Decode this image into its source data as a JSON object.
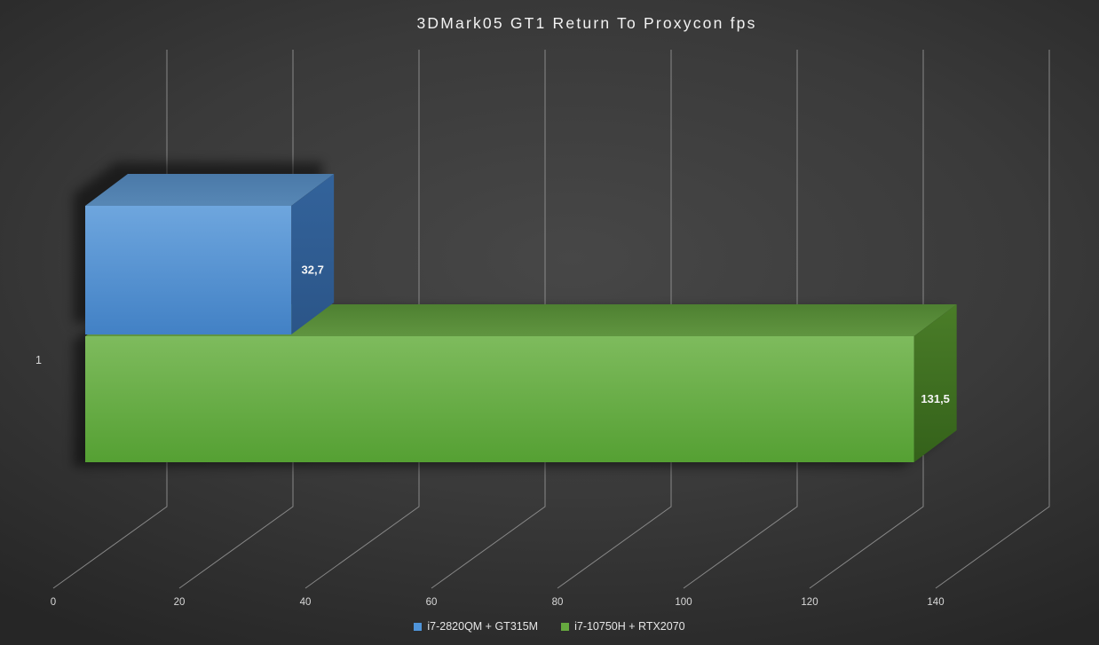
{
  "chart_data": {
    "type": "bar",
    "orientation": "horizontal",
    "style": "3d",
    "title": "3DMark05 GT1 Return To Proxycon fps",
    "categories": [
      "1"
    ],
    "series": [
      {
        "name": "i7-2820QM + GT315M",
        "value": 32.7,
        "value_label": "32,7",
        "color": "#4f94d9",
        "faces": {
          "front_top": "#6ea6de",
          "front_bottom": "#4281c5",
          "top_back": "#4a79a8",
          "top_front": "#5787b5",
          "side_top": "#33639b",
          "side_bottom": "#2b5588"
        }
      },
      {
        "name": "i7-10750H + RTX2070",
        "value": 131.5,
        "value_label": "131,5",
        "color": "#66a93f",
        "faces": {
          "front_top": "#7ebb5d",
          "front_bottom": "#55a033",
          "top_back": "#4e8031",
          "top_front": "#609540",
          "side_top": "#4a7d28",
          "side_bottom": "#34611a"
        }
      }
    ],
    "value_axis": {
      "min": 0,
      "max": 140,
      "ticks": [
        0,
        20,
        40,
        60,
        80,
        100,
        120,
        140
      ],
      "tick_labels": [
        "0",
        "20",
        "40",
        "60",
        "80",
        "100",
        "120",
        "140"
      ]
    },
    "legend_position": "bottom",
    "grid": true
  },
  "colors": {
    "background_center": "#474747",
    "background_mid": "#3a3a3a",
    "background_edge": "#262626",
    "gridline": "#9e9e9e",
    "title_text": "#f2f2f2",
    "tick_text": "#d9d9d9",
    "category_text": "#d9d9d9",
    "legend_text": "#e6e6e6",
    "data_label_text": "#f5f5f5",
    "shadow": "#000000"
  }
}
